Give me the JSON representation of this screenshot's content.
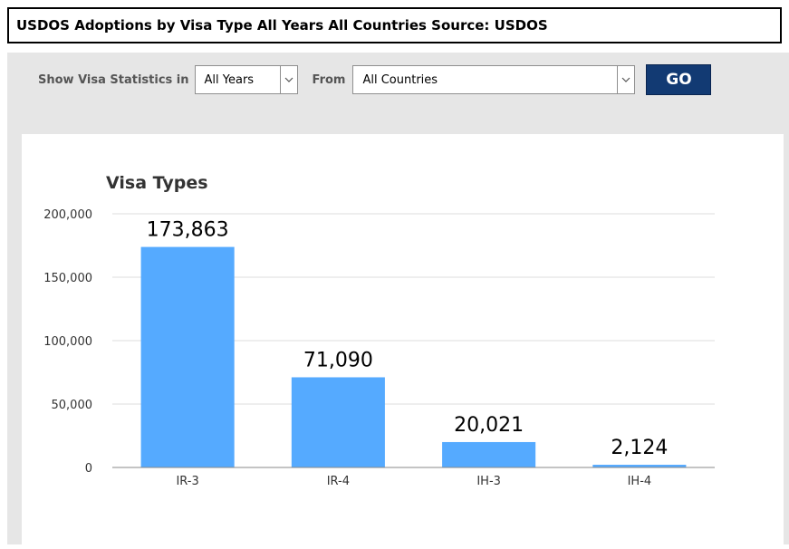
{
  "header": {
    "title": "USDOS Adoptions by Visa Type All Years All Countries Source: USDOS"
  },
  "controls": {
    "show_label": "Show Visa Statistics in",
    "years_value": "All Years",
    "from_label": "From",
    "country_value": "All Countries",
    "go_label": "GO"
  },
  "colors": {
    "bar": "#55aaff",
    "go_button": "#123a73",
    "panel": "#e6e6e6"
  },
  "chart_data": {
    "type": "bar",
    "title": "Visa Types",
    "categories": [
      "IR-3",
      "IR-4",
      "IH-3",
      "IH-4"
    ],
    "values": [
      173863,
      71090,
      20021,
      2124
    ],
    "value_labels": [
      "173,863",
      "71,090",
      "20,021",
      "2,124"
    ],
    "ylim": [
      0,
      200000
    ],
    "yticks": [
      0,
      50000,
      100000,
      150000,
      200000
    ],
    "ytick_labels": [
      "0",
      "50,000",
      "100,000",
      "150,000",
      "200,000"
    ],
    "grid": true,
    "xlabel": "",
    "ylabel": ""
  }
}
